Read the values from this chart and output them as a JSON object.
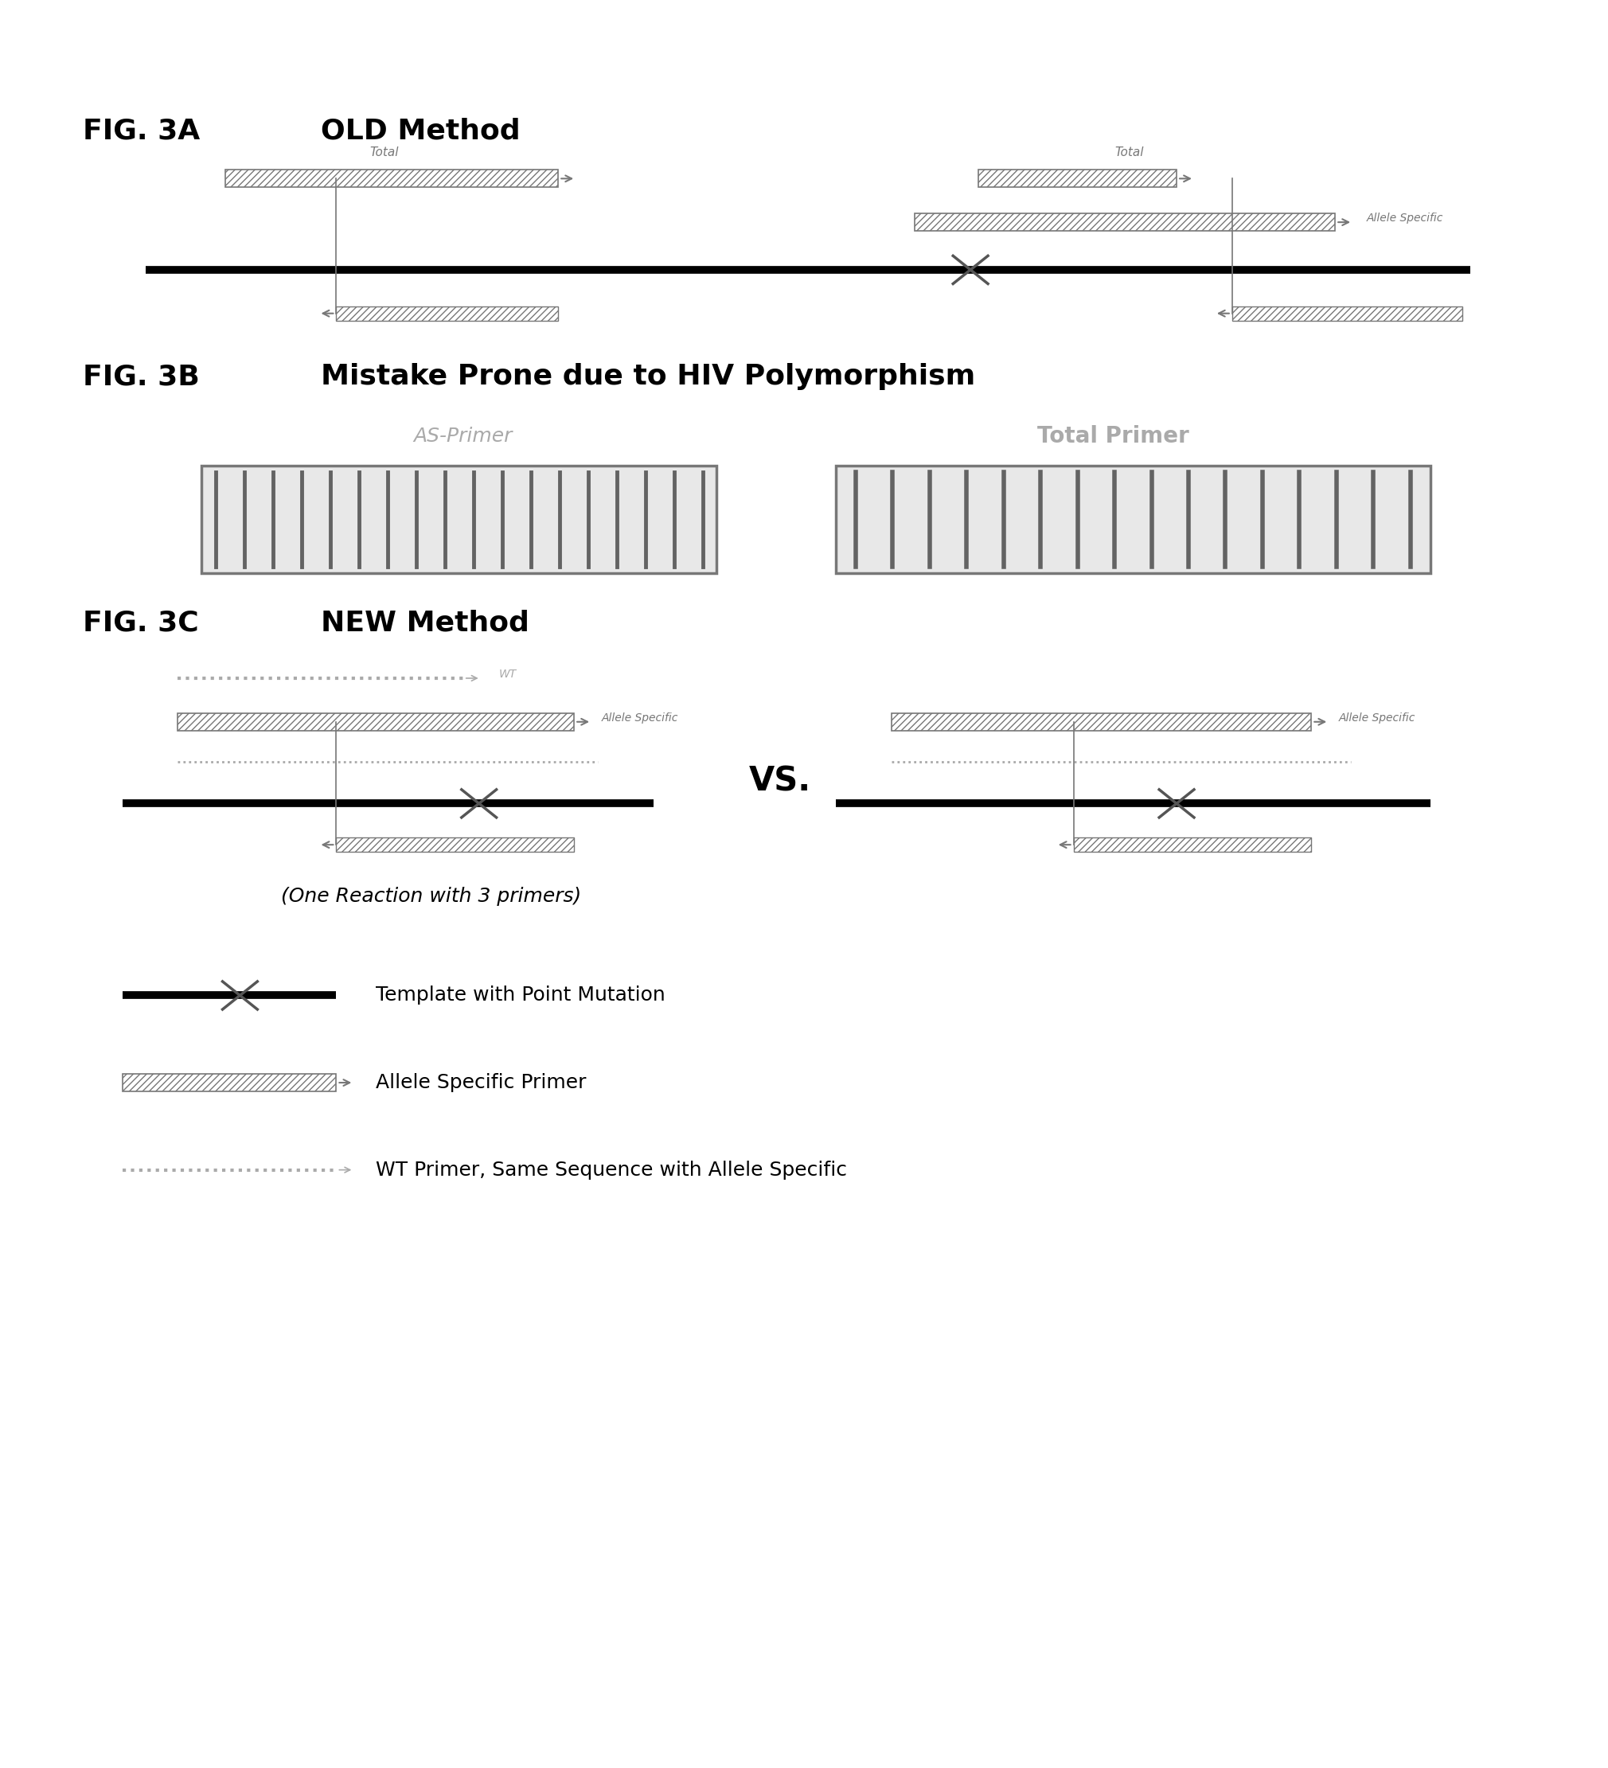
{
  "fig_width": 20.2,
  "fig_height": 22.21,
  "bg_color": "#ffffff",
  "fig3A_label": "FIG. 3A",
  "fig3A_title": "OLD Method",
  "fig3B_label": "FIG. 3B",
  "fig3B_title": "Mistake Prone due to HIV Polymorphism",
  "fig3C_label": "FIG. 3C",
  "fig3C_title": "NEW Method",
  "as_primer_label": "AS-Primer",
  "total_primer_label": "Total Primer",
  "vs_text": "VS.",
  "caption": "(One Reaction with 3 primers)",
  "legend1": "Template with Point Mutation",
  "legend2": "Allele Specific Primer",
  "legend3": "WT Primer, Same Sequence with Allele Specific",
  "gray_dark": "#777777",
  "gray_light": "#aaaaaa",
  "black": "#000000"
}
